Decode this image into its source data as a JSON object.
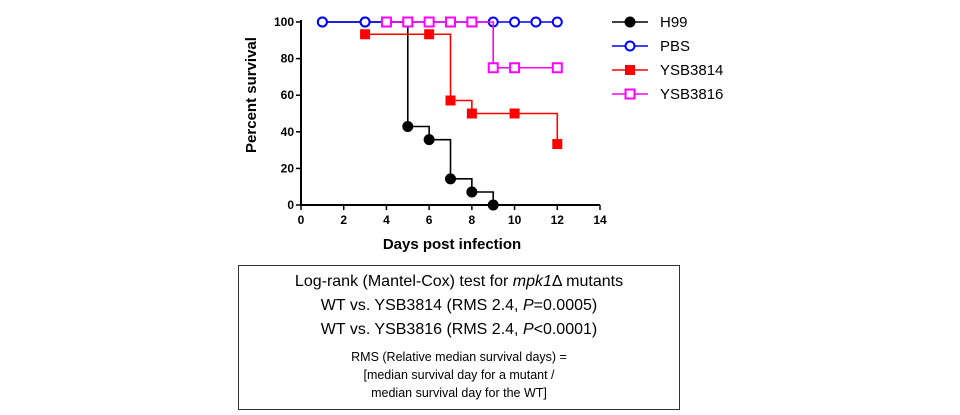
{
  "chart_data": {
    "type": "line",
    "subtype": "kaplan-meier",
    "title": "",
    "xlabel": "Days post infection",
    "ylabel": "Percent survival",
    "xlim": [
      0,
      14
    ],
    "ylim": [
      0,
      100
    ],
    "xticks": [
      0,
      2,
      4,
      6,
      8,
      10,
      12,
      14
    ],
    "yticks": [
      0,
      20,
      40,
      60,
      80,
      100
    ],
    "grid": false,
    "legend": "right",
    "series": [
      {
        "name": "H99",
        "color": "#000000",
        "marker": "circle-filled",
        "x": [
          1,
          3,
          4,
          5,
          6,
          7,
          8,
          9
        ],
        "y": [
          100,
          100,
          100,
          42.9,
          35.7,
          14.3,
          7.1,
          0
        ]
      },
      {
        "name": "PBS",
        "color": "#0000ff",
        "marker": "circle-open",
        "x": [
          1,
          3,
          4,
          5,
          6,
          7,
          8,
          9,
          10,
          11,
          12
        ],
        "y": [
          100,
          100,
          100,
          100,
          100,
          100,
          100,
          100,
          100,
          100,
          100
        ]
      },
      {
        "name": "YSB3814",
        "color": "#ff0000",
        "marker": "square-filled",
        "x": [
          3,
          6,
          7,
          8,
          10,
          12
        ],
        "y": [
          93.3,
          93.3,
          57.1,
          50,
          50,
          33.3
        ]
      },
      {
        "name": "YSB3816",
        "color": "#ff00ff",
        "marker": "square-open",
        "x": [
          4,
          5,
          6,
          7,
          8,
          9,
          10,
          12
        ],
        "y": [
          100,
          100,
          100,
          100,
          100,
          75,
          75,
          75
        ]
      }
    ]
  },
  "stats_box": {
    "heading_prefix": "Log-rank (Mantel-Cox) test for ",
    "heading_italic": "mpk1",
    "heading_suffix": "Δ mutants",
    "comparisons": [
      {
        "pre": "WT vs. YSB3814 (RMS 2.4, ",
        "p_symbol": "P",
        "p_value": "=0.0005)"
      },
      {
        "pre": "WT vs. YSB3816 (RMS 2.4, ",
        "p_symbol": "P",
        "p_value": "<0.0001)"
      }
    ],
    "note_lines": [
      "RMS (Relative median survival days) =",
      "[median survival day for a mutant  /",
      "median survival day for the WT]"
    ]
  }
}
